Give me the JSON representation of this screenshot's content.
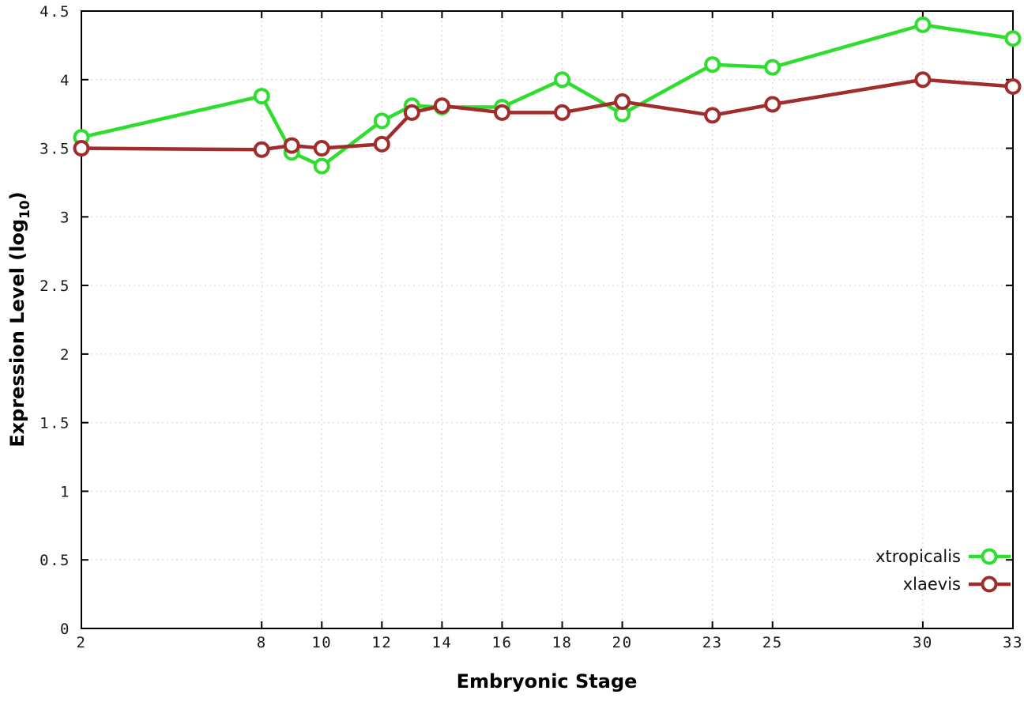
{
  "chart_data": {
    "type": "line",
    "title": "",
    "xlabel": "Embryonic Stage",
    "ylabel": "Expression Level (log10)",
    "ylabel_parts": [
      "Expression Level (log",
      "10",
      ")"
    ],
    "xlim": [
      2,
      33
    ],
    "ylim": [
      0,
      4.5
    ],
    "x_ticks": [
      2,
      8,
      10,
      12,
      14,
      16,
      18,
      20,
      23,
      25,
      30,
      33
    ],
    "y_ticks": [
      0,
      0.5,
      1,
      1.5,
      2,
      2.5,
      3,
      3.5,
      4,
      4.5
    ],
    "grid": true,
    "legend_position": "bottom-right-inside",
    "background_color": "#ffffff",
    "grid_color": "#d8d8d8",
    "axis_color": "#000000",
    "x": [
      2,
      8,
      9,
      10,
      12,
      13,
      14,
      16,
      18,
      20,
      23,
      25,
      30,
      33
    ],
    "series": [
      {
        "name": "xtropicalis",
        "color": "#2edd2e",
        "marker": "open-circle",
        "values": [
          3.58,
          3.88,
          3.47,
          3.37,
          3.7,
          3.81,
          3.8,
          3.8,
          4.0,
          3.75,
          4.11,
          4.09,
          4.4,
          4.3
        ]
      },
      {
        "name": "xlaevis",
        "color": "#a02c2c",
        "marker": "open-circle",
        "values": [
          3.5,
          3.49,
          3.52,
          3.5,
          3.53,
          3.76,
          3.81,
          3.76,
          3.76,
          3.84,
          3.74,
          3.82,
          4.0,
          3.95
        ]
      }
    ]
  }
}
